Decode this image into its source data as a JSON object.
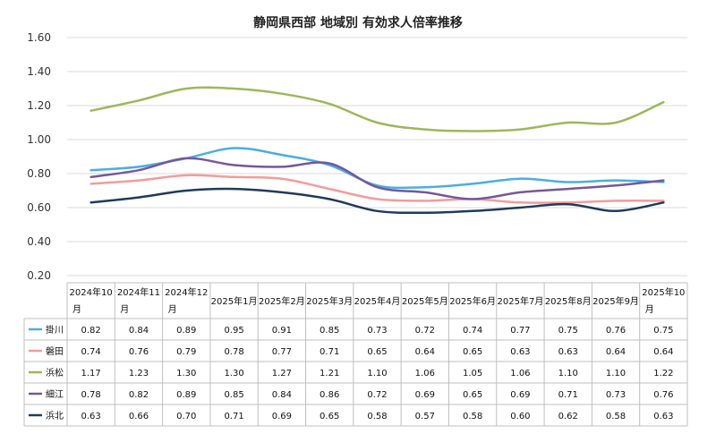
{
  "chart_data": {
    "type": "line",
    "title": "静岡県西部 地域別 有効求人倍率推移",
    "ylim": [
      0.2,
      1.6
    ],
    "yticks": [
      "1.60",
      "1.40",
      "1.20",
      "1.00",
      "0.80",
      "0.60",
      "0.40",
      "0.20"
    ],
    "categories": [
      [
        "2024年10",
        "月"
      ],
      [
        "2024年11",
        "月"
      ],
      [
        "2024年12",
        "月"
      ],
      [
        "2025年1月"
      ],
      [
        "2025年2月"
      ],
      [
        "2025年3月"
      ],
      [
        "2025年4月"
      ],
      [
        "2025年5月"
      ],
      [
        "2025年6月"
      ],
      [
        "2025年7月"
      ],
      [
        "2025年8月"
      ],
      [
        "2025年9月"
      ],
      [
        "2025年10",
        "月"
      ]
    ],
    "grid": true,
    "legend": "table-left",
    "series": [
      {
        "name": "掛川",
        "color": "#4aaee0",
        "values": [
          0.82,
          0.84,
          0.89,
          0.95,
          0.91,
          0.85,
          0.73,
          0.72,
          0.74,
          0.77,
          0.75,
          0.76,
          0.75
        ],
        "labels": [
          "0.82",
          "0.84",
          "0.89",
          "0.95",
          "0.91",
          "0.85",
          "0.73",
          "0.72",
          "0.74",
          "0.77",
          "0.75",
          "0.76",
          "0.75"
        ]
      },
      {
        "name": "磐田",
        "color": "#f29c9c",
        "values": [
          0.74,
          0.76,
          0.79,
          0.78,
          0.77,
          0.71,
          0.65,
          0.64,
          0.65,
          0.63,
          0.63,
          0.64,
          0.64
        ],
        "labels": [
          "0.74",
          "0.76",
          "0.79",
          "0.78",
          "0.77",
          "0.71",
          "0.65",
          "0.64",
          "0.65",
          "0.63",
          "0.63",
          "0.64",
          "0.64"
        ]
      },
      {
        "name": "浜松",
        "color": "#9bb85a",
        "values": [
          1.17,
          1.23,
          1.3,
          1.3,
          1.27,
          1.21,
          1.1,
          1.06,
          1.05,
          1.06,
          1.1,
          1.1,
          1.22
        ],
        "labels": [
          "1.17",
          "1.23",
          "1.30",
          "1.30",
          "1.27",
          "1.21",
          "1.10",
          "1.06",
          "1.05",
          "1.06",
          "1.10",
          "1.10",
          "1.22"
        ]
      },
      {
        "name": "細江",
        "color": "#76579b",
        "values": [
          0.78,
          0.82,
          0.89,
          0.85,
          0.84,
          0.86,
          0.72,
          0.69,
          0.65,
          0.69,
          0.71,
          0.73,
          0.76
        ],
        "labels": [
          "0.78",
          "0.82",
          "0.89",
          "0.85",
          "0.84",
          "0.86",
          "0.72",
          "0.69",
          "0.65",
          "0.69",
          "0.71",
          "0.73",
          "0.76"
        ]
      },
      {
        "name": "浜北",
        "color": "#1f3b5a",
        "values": [
          0.63,
          0.66,
          0.7,
          0.71,
          0.69,
          0.65,
          0.58,
          0.57,
          0.58,
          0.6,
          0.62,
          0.58,
          0.63
        ],
        "labels": [
          "0.63",
          "0.66",
          "0.70",
          "0.71",
          "0.69",
          "0.65",
          "0.58",
          "0.57",
          "0.58",
          "0.60",
          "0.62",
          "0.58",
          "0.63"
        ]
      }
    ]
  }
}
